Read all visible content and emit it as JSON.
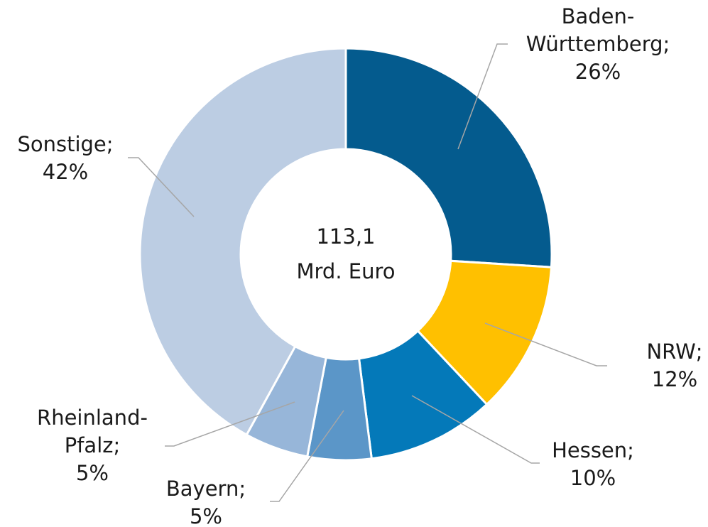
{
  "chart_data": {
    "type": "donut",
    "center_label": [
      "113,1",
      "Mrd. Euro"
    ],
    "categories": [
      "Baden-Württemberg;",
      "NRW;",
      "Hessen;",
      "Bayern;",
      "Rheinland-Pfalz;",
      "Sonstige;"
    ],
    "values": [
      26,
      12,
      10,
      5,
      5,
      42
    ],
    "value_labels": [
      "26%",
      "12%",
      "10%",
      "5%",
      "5%",
      "42%"
    ],
    "colors": [
      "#045b8e",
      "#ffc000",
      "#0479b9",
      "#5b96c8",
      "#97b6d9",
      "#bccde3"
    ]
  }
}
